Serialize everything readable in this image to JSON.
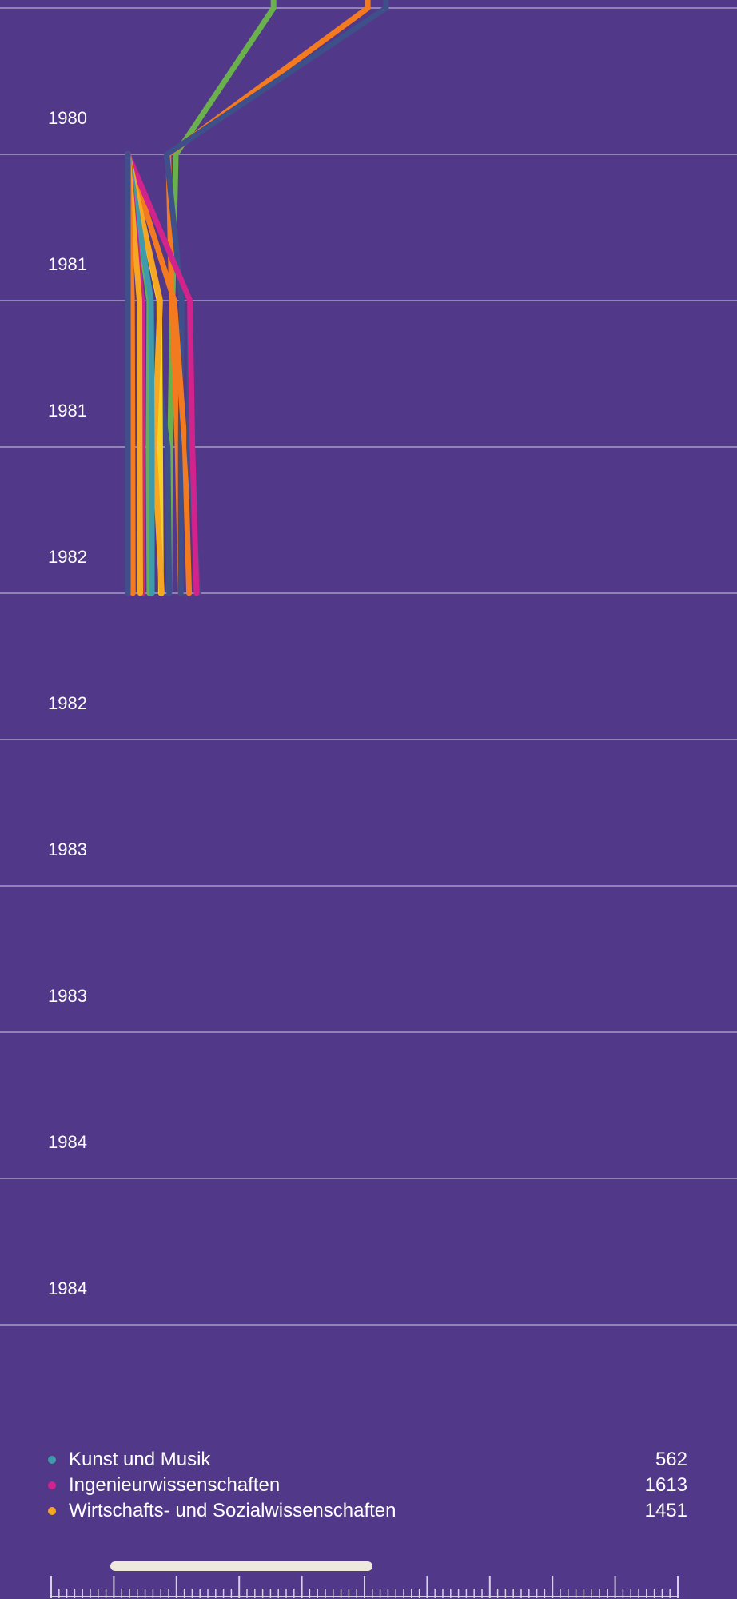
{
  "chart_data": {
    "type": "line",
    "orientation": "vertical-time",
    "title": "",
    "xlabel": "",
    "ylabel": "",
    "grid": true,
    "year_ticks": [
      "1980",
      "1981",
      "1981",
      "1982",
      "1982",
      "1983",
      "1983",
      "1984",
      "1984"
    ],
    "time_points": [
      1979.5,
      1980.0,
      1980.5,
      1981.0,
      1981.5,
      1982.0
    ],
    "series": [
      {
        "color": "#6ab04c",
        "values": [
          880,
          880,
          290,
          270,
          255,
          250
        ]
      },
      {
        "color": "#f47a20",
        "values": [
          1450,
          1450,
          245,
          265,
          300,
          320
        ]
      },
      {
        "color": "#3f4f8a",
        "values": [
          1560,
          1560,
          235,
          325,
          320,
          320
        ]
      },
      {
        "color": "#f47a20",
        "values": [
          null,
          null,
          0,
          280,
          345,
          370
        ]
      },
      {
        "color": "#3f4f8a",
        "values": [
          null,
          null,
          0,
          375,
          370,
          425
        ]
      },
      {
        "color": "#d2228c",
        "values": [
          null,
          null,
          0,
          375,
          390,
          415
        ]
      },
      {
        "color": "#3f4f8a",
        "values": [
          null,
          null,
          0,
          125,
          240,
          250
        ]
      },
      {
        "color": "#f5d21f",
        "values": [
          null,
          null,
          0,
          190,
          195,
          200
        ]
      },
      {
        "color": "#f5a623",
        "values": [
          null,
          null,
          0,
          195,
          160,
          205
        ]
      },
      {
        "color": "#6ab04c",
        "values": [
          null,
          null,
          0,
          130,
          125,
          130
        ]
      },
      {
        "color": "#3f9bab",
        "values": [
          null,
          null,
          0,
          140,
          145,
          145
        ]
      },
      {
        "color": "#d2228c",
        "values": [
          null,
          null,
          0,
          85,
          88,
          90
        ]
      },
      {
        "color": "#f5a623",
        "values": [
          null,
          null,
          0,
          70,
          72,
          75
        ]
      },
      {
        "color": "#f47a20",
        "values": [
          null,
          null,
          0,
          25,
          28,
          30
        ]
      },
      {
        "color": "#3f4f8a",
        "values": [
          null,
          null,
          0,
          0,
          0,
          0
        ]
      }
    ]
  },
  "legend": {
    "items": [
      {
        "name": "Kunst und Musik",
        "value": "562",
        "color": "#3f9bab"
      },
      {
        "name": "Ingenieurwissenschaften",
        "value": "1613",
        "color": "#d2228c"
      },
      {
        "name": "Wirtschafts- und Sozialwissenschaften",
        "value": "1451",
        "color": "#f5a623"
      }
    ]
  },
  "scrubber": {
    "handle_color": "#efe8dc"
  }
}
